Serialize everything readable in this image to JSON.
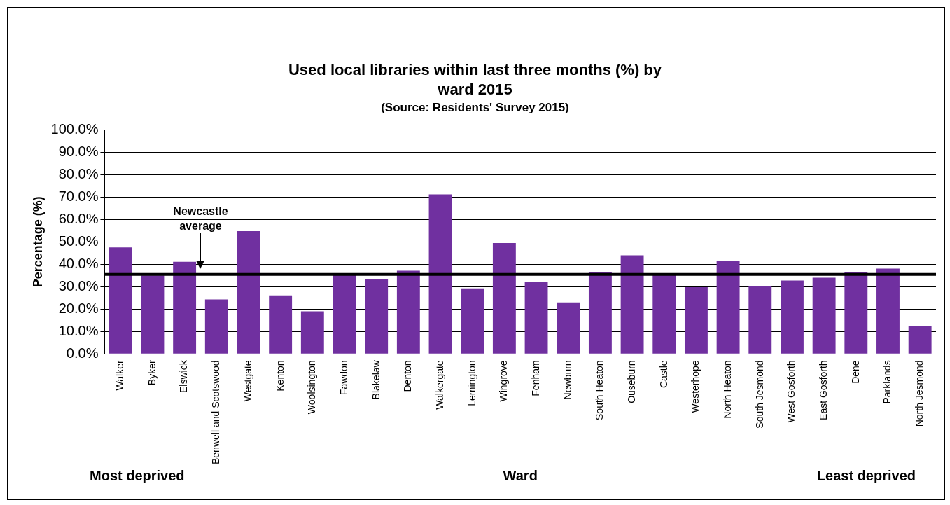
{
  "chart_data": {
    "type": "bar",
    "title": "Used local libraries within last three months (%) by ward 2015",
    "subtitle": "(Source: Residents' Survey 2015)",
    "xlabel": "Ward",
    "ylabel": "Percentage (%)",
    "categories": [
      "Walker",
      "Byker",
      "Elswick",
      "Benwell and Scotswood",
      "Westgate",
      "Kenton",
      "Woolsington",
      "Fawdon",
      "Blakelaw",
      "Denton",
      "Walkergate",
      "Lemington",
      "Wingrove",
      "Fenham",
      "Newburn",
      "South Heaton",
      "Ouseburn",
      "Castle",
      "Westerhope",
      "North Heaton",
      "South Jesmond",
      "West Gosforth",
      "East Gosforth",
      "Dene",
      "Parklands",
      "North Jesmond"
    ],
    "values": [
      47.5,
      35.0,
      41.1,
      24.3,
      54.7,
      26.1,
      19.0,
      35.3,
      33.5,
      37.1,
      71.1,
      29.2,
      49.4,
      32.3,
      23.0,
      36.5,
      44.0,
      35.5,
      29.8,
      41.5,
      30.4,
      32.7,
      34.0,
      36.5,
      38.0,
      12.5
    ],
    "color": "#7030a0",
    "ylim": [
      0,
      100
    ],
    "yticks": [
      {
        "value": 0,
        "label": "0.0%"
      },
      {
        "value": 10,
        "label": "10.0%"
      },
      {
        "value": 20,
        "label": "20.0%"
      },
      {
        "value": 30,
        "label": "30.0%"
      },
      {
        "value": 40,
        "label": "40.0%"
      },
      {
        "value": 50,
        "label": "50.0%"
      },
      {
        "value": 60,
        "label": "60.0%"
      },
      {
        "value": 70,
        "label": "70.0%"
      },
      {
        "value": 80,
        "label": "80.0%"
      },
      {
        "value": 90,
        "label": "90.0%"
      },
      {
        "value": 100,
        "label": "100.0%"
      }
    ],
    "grid": "y",
    "legend": false,
    "ref_lines": [
      {
        "axis": "y",
        "value": 35.5,
        "label": "Newcastle average",
        "color": "#000000"
      }
    ],
    "annotations": [
      "Most deprived",
      "Least deprived"
    ]
  }
}
